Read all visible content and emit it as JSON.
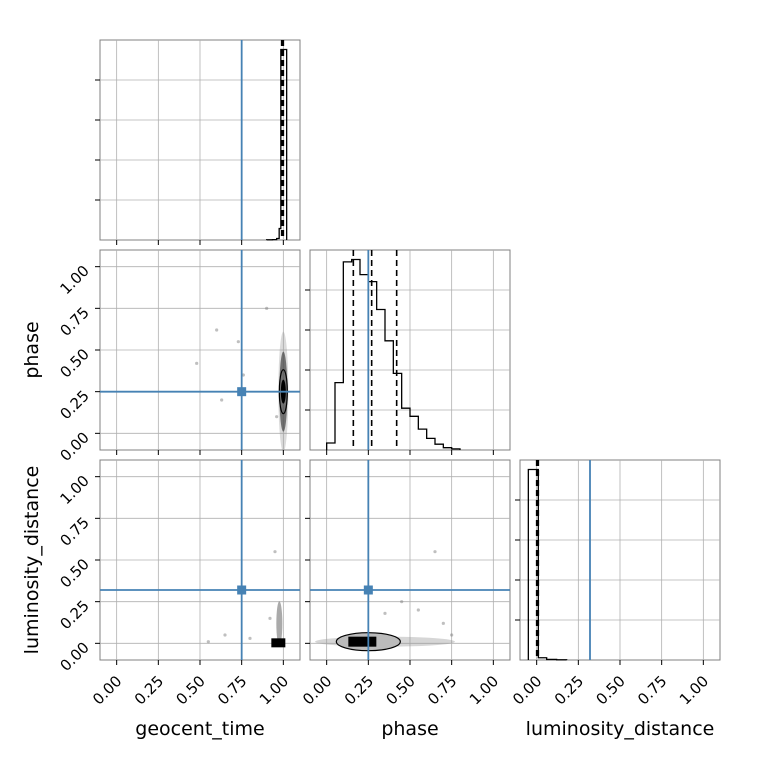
{
  "chart_data": {
    "type": "corner",
    "parameters": [
      "geocent_time",
      "phase",
      "luminosity_distance"
    ],
    "axis_range": [
      -0.1,
      1.1
    ],
    "tick_values": [
      0.0,
      0.25,
      0.5,
      0.75,
      1.0
    ],
    "tick_labels": [
      "0.00",
      "0.25",
      "0.50",
      "0.75",
      "1.00"
    ],
    "grid": true,
    "colors": {
      "truth": "#4682b4",
      "hist": "#000000",
      "grid": "#b0b0b0",
      "points": "#808080"
    },
    "truths": {
      "geocent_time": 0.75,
      "phase": 0.25,
      "luminosity_distance": 0.32
    },
    "quantiles": {
      "geocent_time": [
        0.99,
        0.995,
        1.0
      ],
      "phase": [
        0.16,
        0.27,
        0.42
      ],
      "luminosity_distance": [
        0.0,
        0.003,
        0.01
      ]
    },
    "histograms": {
      "geocent_time": {
        "edges": [
          0.9,
          0.935,
          0.96,
          0.975,
          0.985,
          1.02
        ],
        "counts": [
          1,
          2,
          8,
          60,
          1000
        ]
      },
      "phase": {
        "edges": [
          0.0,
          0.05,
          0.1,
          0.15,
          0.2,
          0.25,
          0.3,
          0.35,
          0.4,
          0.45,
          0.5,
          0.55,
          0.6,
          0.65,
          0.7,
          0.75,
          0.8
        ],
        "counts": [
          6,
          58,
          162,
          164,
          151,
          145,
          121,
          94,
          66,
          36,
          29,
          18,
          10,
          5,
          2,
          1
        ]
      },
      "luminosity_distance": {
        "edges": [
          -0.05,
          0.01,
          0.06,
          0.12,
          0.18
        ],
        "counts": [
          1000,
          12,
          3,
          1
        ]
      }
    },
    "scatter": {
      "phase_vs_geocent_time": {
        "core": {
          "x": 1.0,
          "y": 0.25
        },
        "outliers": [
          [
            0.48,
            0.42
          ],
          [
            0.6,
            0.62
          ],
          [
            0.73,
            0.55
          ],
          [
            0.76,
            0.35
          ],
          [
            0.63,
            0.2
          ],
          [
            0.9,
            0.75
          ],
          [
            0.96,
            0.1
          ]
        ]
      },
      "luminosity_distance_vs_geocent_time": {
        "core": {
          "x": 1.0,
          "y": 0.0
        },
        "outliers": [
          [
            0.55,
            0.01
          ],
          [
            0.65,
            0.05
          ],
          [
            0.8,
            0.03
          ],
          [
            0.95,
            0.55
          ],
          [
            0.92,
            0.15
          ]
        ]
      },
      "luminosity_distance_vs_phase": {
        "core": {
          "x": 0.25,
          "y": 0.01
        },
        "outliers": [
          [
            0.65,
            0.55
          ],
          [
            0.55,
            0.2
          ],
          [
            0.7,
            0.12
          ],
          [
            0.45,
            0.25
          ],
          [
            0.75,
            0.05
          ],
          [
            0.35,
            0.18
          ]
        ]
      }
    }
  }
}
